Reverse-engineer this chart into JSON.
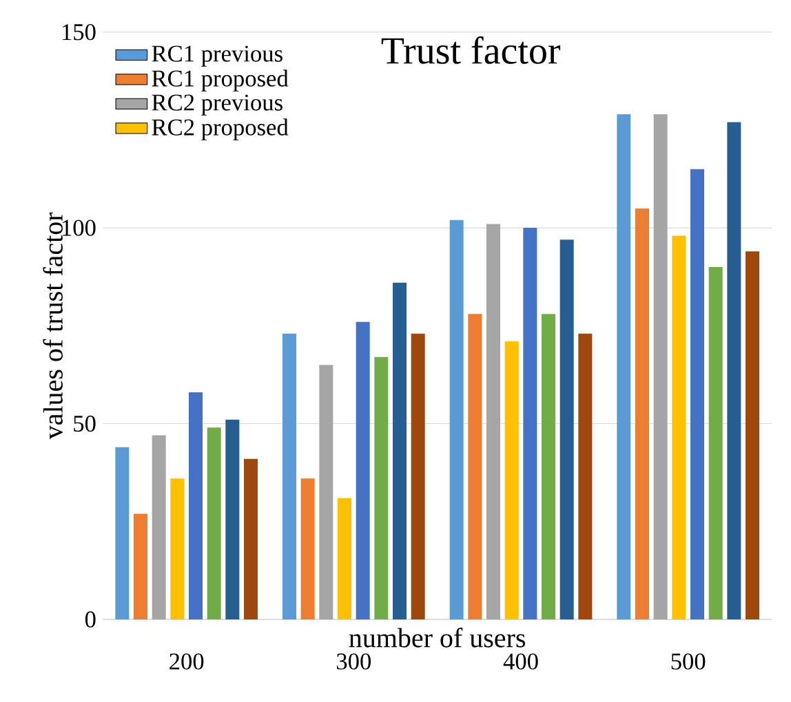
{
  "chart_data": {
    "type": "bar",
    "title": "Trust factor",
    "xlabel": "number of users",
    "ylabel": "values of trust factor",
    "categories": [
      "200",
      "300",
      "400",
      "500"
    ],
    "series": [
      {
        "name": "RC1 previous",
        "color": "#5b9bd5",
        "values": [
          44,
          73,
          102,
          129
        ]
      },
      {
        "name": "RC1 proposed",
        "color": "#ed7d31",
        "values": [
          27,
          36,
          78,
          105
        ]
      },
      {
        "name": "RC2 previous",
        "color": "#a5a5a5",
        "values": [
          47,
          65,
          101,
          129
        ]
      },
      {
        "name": "RC2 proposed",
        "color": "#ffc000",
        "values": [
          36,
          31,
          71,
          98
        ]
      },
      {
        "color": "#4472c4",
        "values": [
          58,
          76,
          100,
          115
        ]
      },
      {
        "color": "#70ad47",
        "values": [
          49,
          67,
          78,
          90
        ]
      },
      {
        "color": "#255e91",
        "values": [
          51,
          86,
          97,
          127
        ]
      },
      {
        "color": "#9e480e",
        "values": [
          41,
          73,
          73,
          94
        ]
      }
    ],
    "ylim": [
      0,
      150
    ],
    "yticks": [
      0,
      50,
      100,
      150
    ],
    "grid": "y",
    "legend": "top left"
  }
}
